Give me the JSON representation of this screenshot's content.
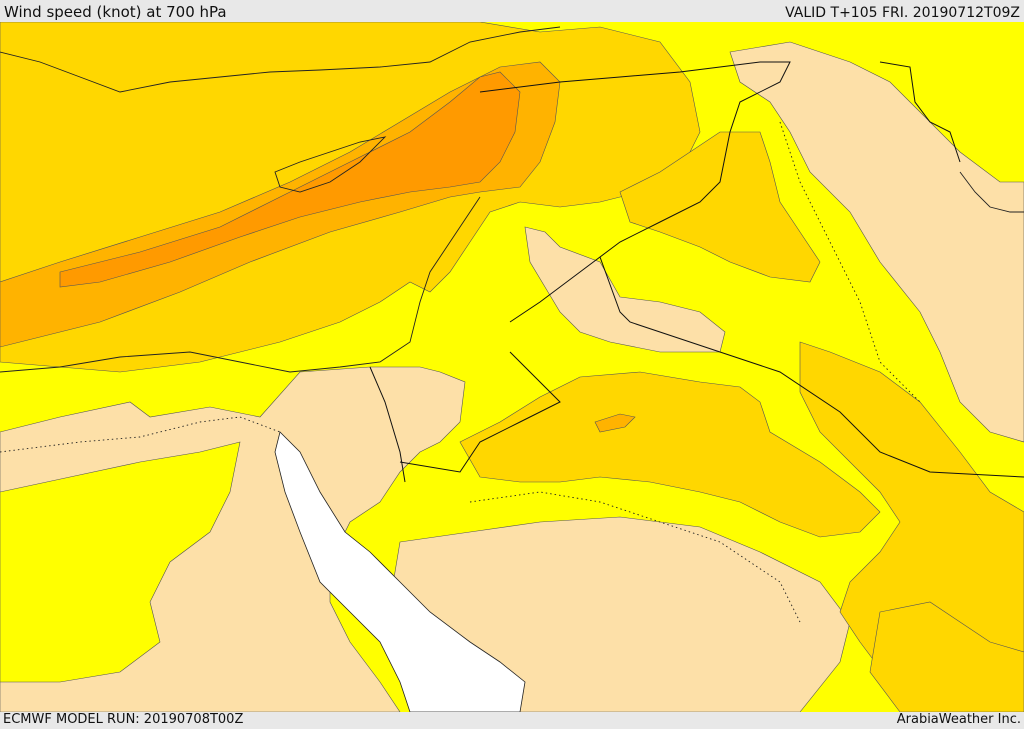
{
  "header": {
    "title": "Wind speed (knot) at 700 hPa",
    "valid": "VALID T+105 FRI. 20190712T09Z"
  },
  "footer": {
    "model_run": "ECMWF MODEL RUN: 20190708T00Z",
    "credit": "ArabiaWeather Inc."
  },
  "colors": {
    "calm": "#fde0a8",
    "light": "#ffff00",
    "moderate": "#ffd700",
    "strong": "#ffb300",
    "stronger": "#ff9a00",
    "sea": "#ffffff",
    "chrome": "#e8e8e8"
  }
}
